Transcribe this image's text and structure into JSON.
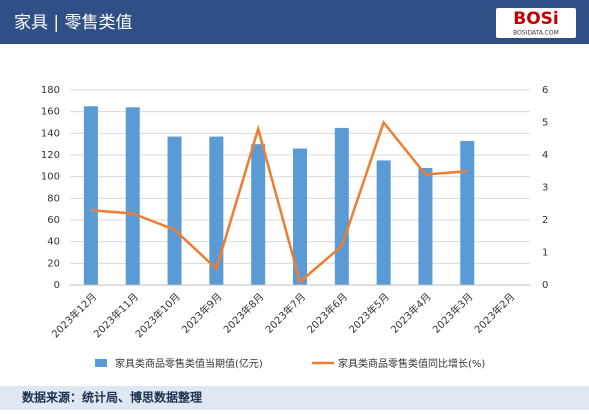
{
  "chart_data": {
    "type": "bar_line",
    "title": "家具 | 零售类值",
    "logo": "BOSi",
    "logo_sub": "BOSIDATA.COM",
    "source": "数据来源：统计局、博思数据整理",
    "categories": [
      "2023年12月",
      "2023年11月",
      "2023年10月",
      "2023年9月",
      "2023年8月",
      "2023年7月",
      "2023年6月",
      "2023年5月",
      "2023年4月",
      "2023年3月",
      "2023年2月"
    ],
    "series": [
      {
        "name": "家具类商品零售类值当期值(亿元)",
        "color": "#5b9bd5",
        "kind": "bar",
        "values": [
          165,
          164,
          137,
          137,
          130,
          126,
          145,
          115,
          108,
          133,
          null
        ]
      },
      {
        "name": "家具类商品零售类值同比增长(%)",
        "color": "#ed7d31",
        "kind": "line",
        "axis": "y2",
        "values": [
          2.3,
          2.2,
          1.7,
          0.5,
          4.8,
          0.1,
          1.2,
          5.0,
          3.4,
          3.5,
          null
        ]
      }
    ],
    "ylim": [
      0,
      180
    ],
    "yticks": [
      0,
      20,
      40,
      60,
      80,
      100,
      120,
      140,
      160,
      180
    ],
    "y2lim": [
      0,
      6
    ],
    "y2ticks": [
      0,
      1,
      2,
      3,
      4,
      5,
      6
    ],
    "grid": true
  }
}
